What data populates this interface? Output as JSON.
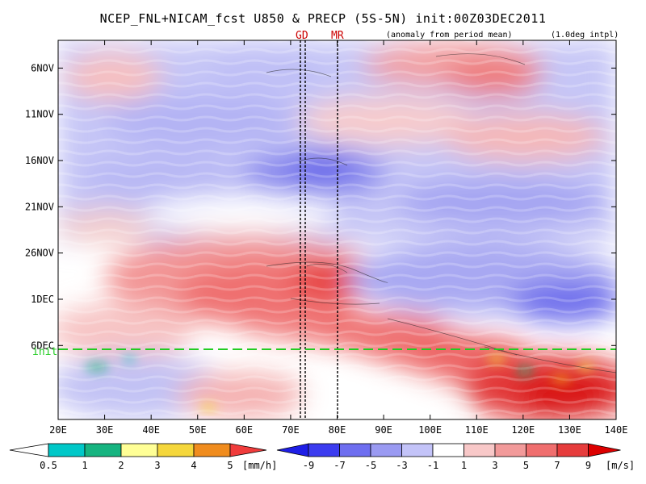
{
  "header": {
    "title": "NCEP_FNL+NICAM_fcst U850 & PRECP (5S-5N) init:00Z03DEC2011",
    "subtitle": "(anomaly from period mean)",
    "interp_note": "(1.0deg intpl)"
  },
  "markers": {
    "gd_label": "GD",
    "mr_label": "MR",
    "init_label": "init"
  },
  "colors": {
    "init_line": "#22cc22",
    "marker_text": "#cc0000",
    "neg_strong": "#1e1ee6",
    "pos_strong": "#e61e1e"
  },
  "chart_data": {
    "type": "heatmap",
    "title": "NCEP_FNL+NICAM_fcst U850 & PRECP (5S-5N) init:00Z03DEC2011",
    "xlabel": "",
    "ylabel": "",
    "x_ticks": [
      "20E",
      "30E",
      "40E",
      "50E",
      "60E",
      "70E",
      "80E",
      "90E",
      "100E",
      "110E",
      "120E",
      "130E",
      "140E"
    ],
    "x_range_deg": [
      20,
      140
    ],
    "y_ticks": [
      "6NOV",
      "11NOV",
      "16NOV",
      "21NOV",
      "26NOV",
      "1DEC",
      "6DEC"
    ],
    "y_range": [
      "3NOV",
      "14DEC"
    ],
    "init_date": "3DEC",
    "vertical_lines_deg": [
      72,
      73,
      80
    ],
    "precip_colorbar": {
      "unit": "[mm/h]",
      "labels": [
        "0.5",
        "1",
        "2",
        "3",
        "4",
        "5"
      ],
      "colors": [
        "#00c8c8",
        "#16b480",
        "#ffff96",
        "#f5d73c",
        "#f08c1e",
        "#f03c3c"
      ]
    },
    "wind_colorbar": {
      "unit": "[m/s]",
      "labels": [
        "-9",
        "-7",
        "-5",
        "-3",
        "-1",
        "1",
        "3",
        "5",
        "7",
        "9"
      ],
      "colors": [
        "#1e1ee6",
        "#3c3cf0",
        "#6e6ef0",
        "#9a9af2",
        "#c3c3f8",
        "#ffffff",
        "#f8c8c8",
        "#f29a9a",
        "#f06e6e",
        "#e63c3c",
        "#dc0000"
      ]
    }
  }
}
